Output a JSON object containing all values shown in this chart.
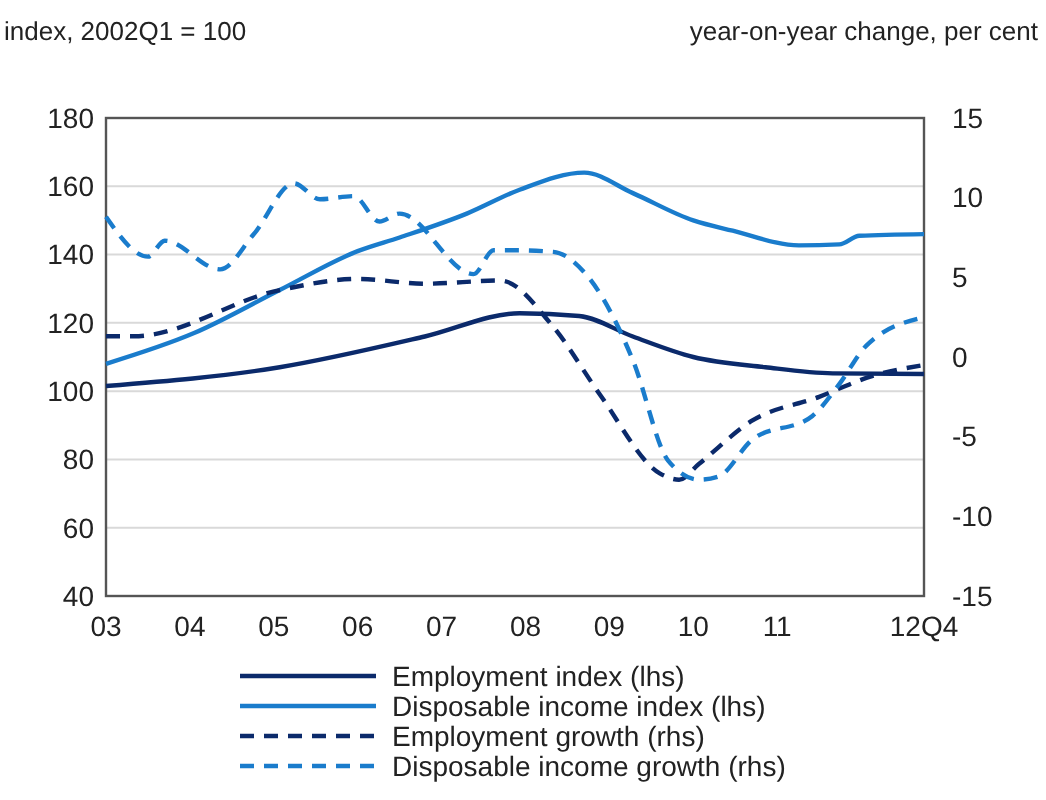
{
  "chart_data": {
    "type": "line",
    "ylabel": "index, 2002Q1 = 100",
    "y2label": "year-on-year change, per cent",
    "xlim": [
      2003,
      2012.75
    ],
    "xticks": [
      {
        "value": 2003,
        "label": "03"
      },
      {
        "value": 2004,
        "label": "04"
      },
      {
        "value": 2005,
        "label": "05"
      },
      {
        "value": 2006,
        "label": "06"
      },
      {
        "value": 2007,
        "label": "07"
      },
      {
        "value": 2008,
        "label": "08"
      },
      {
        "value": 2009,
        "label": "09"
      },
      {
        "value": 2010,
        "label": "10"
      },
      {
        "value": 2011,
        "label": "11"
      },
      {
        "value": 2012.75,
        "label": "12Q4"
      }
    ],
    "ylim": [
      40,
      180
    ],
    "yticks": [
      40,
      60,
      80,
      100,
      120,
      140,
      160,
      180
    ],
    "y2lim": [
      -15,
      15
    ],
    "y2ticks": [
      -15,
      -10,
      -5,
      0,
      5,
      10,
      15
    ],
    "grid": "y",
    "legend": "bottom",
    "series": [
      {
        "name": "Employment index (lhs)",
        "color": "#0b2a6b",
        "line_style": "solid",
        "x": [
          2003,
          2005.07,
          2006.8,
          2007.93,
          2008.64,
          2009.28,
          2010,
          2010.86,
          2011.66,
          2012.75
        ],
        "values": [
          101.5,
          107,
          116,
          122.8,
          122,
          116,
          110,
          107,
          105.2,
          105
        ]
      },
      {
        "name": "Disposable income index (lhs)",
        "color": "#1a7ccc",
        "line_style": "solid",
        "x": [
          2003,
          2004.05,
          2005.07,
          2006,
          2006.5,
          2007.3,
          2007.93,
          2008.7,
          2009.28,
          2010,
          2010.47,
          2011.26,
          2011.74,
          2011.98,
          2012.75
        ],
        "values": [
          108,
          117,
          129.6,
          141,
          145,
          152,
          159,
          164,
          158,
          150,
          147,
          142.7,
          143,
          145.5,
          146
        ]
      },
      {
        "name": "Employment growth (rhs)",
        "color": "#0b2a6b",
        "line_style": "dashed",
        "axis": "y2",
        "x": [
          2003,
          2003.33,
          2005.07,
          2006,
          2006.8,
          2007.7,
          2008.33,
          2008.88,
          2009.6,
          2009.83,
          2010.07,
          2010.7,
          2011.5,
          2012.13,
          2012.75
        ],
        "values": [
          1.3,
          1.3,
          4.2,
          4.9,
          4.6,
          4.8,
          1.9,
          -2.3,
          -7.3,
          -7.7,
          -6.7,
          -4,
          -2.5,
          -1.2,
          -0.5
        ]
      },
      {
        "name": "Disposable income growth (rhs)",
        "color": "#1a7ccc",
        "line_style": "dashed",
        "axis": "y2",
        "x": [
          2003,
          2003.5,
          2003.7,
          2004.36,
          2004.76,
          2005.24,
          2005.55,
          2005.95,
          2006.26,
          2006.5,
          2007.38,
          2007.62,
          2007.85,
          2008.33,
          2008.72,
          2009.28,
          2009.7,
          2010.07,
          2010.3,
          2010.7,
          2011.42,
          2011.74,
          2012.06,
          2012.75
        ],
        "values": [
          8.8,
          6.3,
          7.3,
          5.5,
          7.7,
          10.9,
          9.9,
          10.1,
          8.5,
          9,
          5.2,
          6.7,
          6.7,
          6.6,
          5.2,
          -0.2,
          -6.5,
          -7.7,
          -7.5,
          -5.2,
          -3.7,
          -1.7,
          0.7,
          2.5
        ]
      }
    ]
  }
}
